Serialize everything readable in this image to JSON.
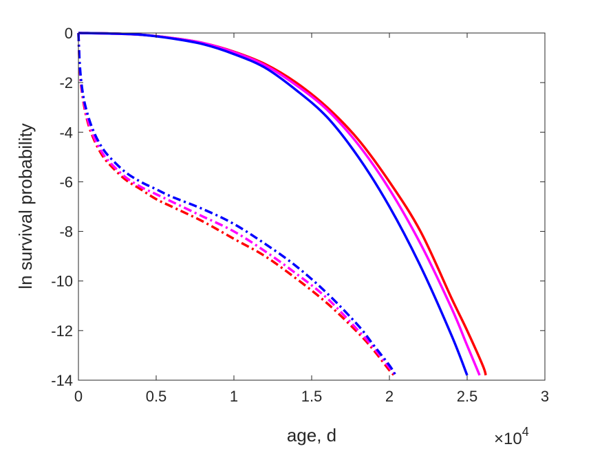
{
  "chart_data": {
    "type": "line",
    "title": "",
    "xlabel": "age, d",
    "ylabel": "ln survival probability",
    "xlim": [
      0,
      30000
    ],
    "ylim": [
      -14,
      0
    ],
    "x_exponent_label": {
      "base": "×10",
      "exponent": "4"
    },
    "x_ticks": [
      {
        "value": 0,
        "label": "0"
      },
      {
        "value": 5000,
        "label": "0.5"
      },
      {
        "value": 10000,
        "label": "1"
      },
      {
        "value": 15000,
        "label": "1.5"
      },
      {
        "value": 20000,
        "label": "2"
      },
      {
        "value": 25000,
        "label": "2.5"
      },
      {
        "value": 30000,
        "label": "3"
      }
    ],
    "y_ticks": [
      {
        "value": 0,
        "label": "0"
      },
      {
        "value": -2,
        "label": "-2"
      },
      {
        "value": -4,
        "label": "-4"
      },
      {
        "value": -6,
        "label": "-6"
      },
      {
        "value": -8,
        "label": "-8"
      },
      {
        "value": -10,
        "label": "-10"
      },
      {
        "value": -12,
        "label": "-12"
      },
      {
        "value": -14,
        "label": "-14"
      }
    ],
    "grid": false,
    "legend": "none",
    "series": [
      {
        "color": "#ff0000",
        "style": "solid",
        "x": [
          0,
          2000,
          4000,
          6000,
          8000,
          10000,
          12000,
          14000,
          16000,
          18000,
          20000,
          22000,
          24000,
          25000,
          26000,
          26200
        ],
        "y": [
          0,
          -0.02,
          -0.07,
          -0.2,
          -0.4,
          -0.75,
          -1.25,
          -2.0,
          -3.0,
          -4.3,
          -6.0,
          -8.0,
          -10.7,
          -12.0,
          -13.4,
          -13.8
        ]
      },
      {
        "color": "#ff00ff",
        "style": "solid",
        "x": [
          0,
          2000,
          4000,
          6000,
          8000,
          10000,
          12000,
          14000,
          16000,
          18000,
          20000,
          22000,
          24000,
          25000,
          25800
        ],
        "y": [
          0,
          -0.02,
          -0.07,
          -0.2,
          -0.4,
          -0.77,
          -1.3,
          -2.1,
          -3.1,
          -4.5,
          -6.3,
          -8.5,
          -11.1,
          -12.6,
          -13.8
        ]
      },
      {
        "color": "#0000ff",
        "style": "solid",
        "x": [
          0,
          2000,
          4000,
          6000,
          8000,
          10000,
          12000,
          14000,
          16000,
          18000,
          20000,
          22000,
          24000,
          25000
        ],
        "y": [
          0,
          -0.02,
          -0.07,
          -0.22,
          -0.45,
          -0.85,
          -1.4,
          -2.3,
          -3.4,
          -5.0,
          -7.0,
          -9.4,
          -12.2,
          -13.8
        ]
      },
      {
        "color": "#ff0000",
        "style": "dashdot",
        "x": [
          0,
          100,
          300,
          600,
          1000,
          1500,
          2000,
          3000,
          4000,
          5000,
          6000,
          8000,
          10000,
          12000,
          14000,
          16000,
          18000,
          19000,
          20000,
          20300
        ],
        "y": [
          0,
          -1.6,
          -2.7,
          -3.6,
          -4.3,
          -4.9,
          -5.3,
          -5.9,
          -6.3,
          -6.7,
          -7.0,
          -7.6,
          -8.3,
          -9.0,
          -9.9,
          -10.9,
          -12.1,
          -12.8,
          -13.6,
          -13.8
        ]
      },
      {
        "color": "#ff00ff",
        "style": "dashdot",
        "x": [
          0,
          100,
          300,
          600,
          1000,
          1500,
          2000,
          3000,
          4000,
          5000,
          6000,
          8000,
          10000,
          12000,
          14000,
          16000,
          18000,
          19000,
          20000,
          20400
        ],
        "y": [
          0,
          -1.5,
          -2.6,
          -3.5,
          -4.2,
          -4.8,
          -5.2,
          -5.8,
          -6.2,
          -6.5,
          -6.8,
          -7.4,
          -8.0,
          -8.8,
          -9.7,
          -10.7,
          -12.0,
          -12.7,
          -13.5,
          -13.8
        ]
      },
      {
        "color": "#0000ff",
        "style": "dashdot",
        "x": [
          0,
          100,
          300,
          600,
          1000,
          1500,
          2000,
          3000,
          4000,
          5000,
          6000,
          8000,
          10000,
          12000,
          14000,
          16000,
          18000,
          19000,
          20000,
          20400
        ],
        "y": [
          0,
          -1.4,
          -2.5,
          -3.3,
          -4.0,
          -4.6,
          -5.0,
          -5.6,
          -6.0,
          -6.3,
          -6.6,
          -7.1,
          -7.7,
          -8.5,
          -9.4,
          -10.5,
          -11.8,
          -12.6,
          -13.4,
          -13.8
        ]
      }
    ]
  }
}
